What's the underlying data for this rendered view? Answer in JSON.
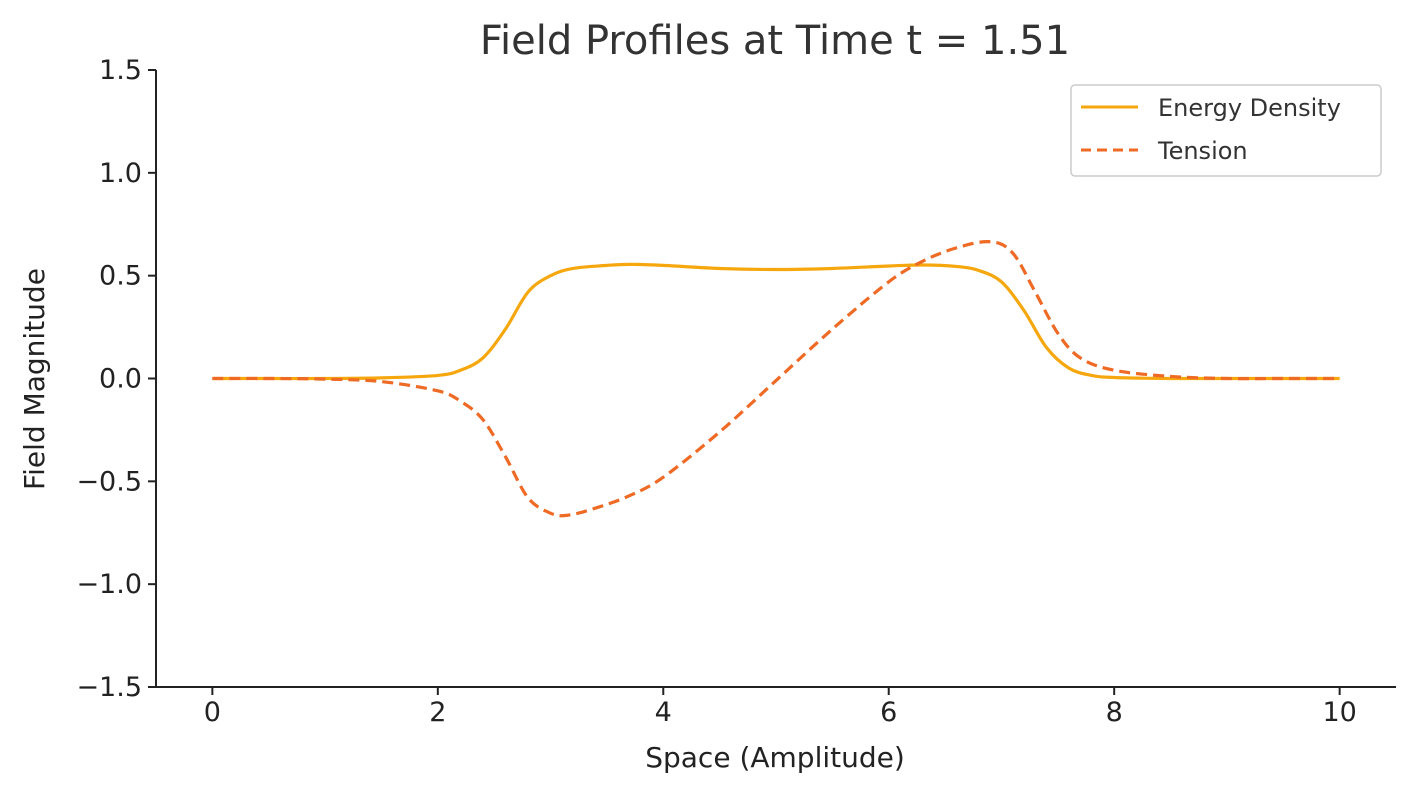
{
  "chart_data": {
    "type": "line",
    "title": "Field Profiles at Time t = 1.51",
    "xlabel": "Space (Amplitude)",
    "ylabel": "Field Magnitude",
    "xlim": [
      -0.5,
      10.5
    ],
    "ylim": [
      -1.5,
      1.5
    ],
    "xticks": [
      0,
      2,
      4,
      6,
      8,
      10
    ],
    "xtick_labels": [
      "0",
      "2",
      "4",
      "6",
      "8",
      "10"
    ],
    "yticks": [
      -1.5,
      -1.0,
      -0.5,
      0.0,
      0.5,
      1.0,
      1.5
    ],
    "ytick_labels": [
      "−1.5",
      "−1.0",
      "−0.5",
      "0.0",
      "0.5",
      "1.0",
      "1.5"
    ],
    "grid": false,
    "legend_position": "top-right",
    "series": [
      {
        "name": "Energy Density",
        "color": "#F5A70D",
        "style": "solid",
        "x": [
          0,
          0.5,
          1.0,
          1.5,
          2.0,
          2.2,
          2.4,
          2.6,
          2.8,
          3.0,
          3.2,
          3.5,
          3.7,
          4.0,
          4.5,
          5.0,
          5.5,
          6.0,
          6.3,
          6.6,
          6.8,
          7.0,
          7.2,
          7.4,
          7.6,
          7.8,
          8.0,
          8.5,
          9.0,
          9.5,
          10.0
        ],
        "y": [
          0,
          0,
          0,
          0.003,
          0.015,
          0.04,
          0.1,
          0.24,
          0.42,
          0.5,
          0.535,
          0.55,
          0.555,
          0.55,
          0.535,
          0.53,
          0.535,
          0.547,
          0.552,
          0.545,
          0.525,
          0.47,
          0.33,
          0.15,
          0.05,
          0.015,
          0.005,
          0,
          0,
          0,
          0
        ]
      },
      {
        "name": "Tension",
        "color": "#EE6A25",
        "style": "dashed",
        "x": [
          0,
          0.5,
          1.0,
          1.5,
          2.0,
          2.2,
          2.4,
          2.6,
          2.8,
          3.0,
          3.15,
          3.4,
          3.7,
          4.0,
          4.5,
          5.0,
          5.5,
          6.0,
          6.3,
          6.6,
          6.9,
          7.1,
          7.3,
          7.5,
          7.7,
          8.0,
          8.5,
          9.0,
          9.5,
          10.0
        ],
        "y": [
          0,
          0,
          -0.003,
          -0.015,
          -0.06,
          -0.11,
          -0.2,
          -0.38,
          -0.58,
          -0.655,
          -0.665,
          -0.63,
          -0.57,
          -0.48,
          -0.26,
          -0.01,
          0.24,
          0.47,
          0.57,
          0.635,
          0.665,
          0.61,
          0.42,
          0.22,
          0.1,
          0.04,
          0.01,
          0,
          0,
          0
        ]
      }
    ]
  }
}
